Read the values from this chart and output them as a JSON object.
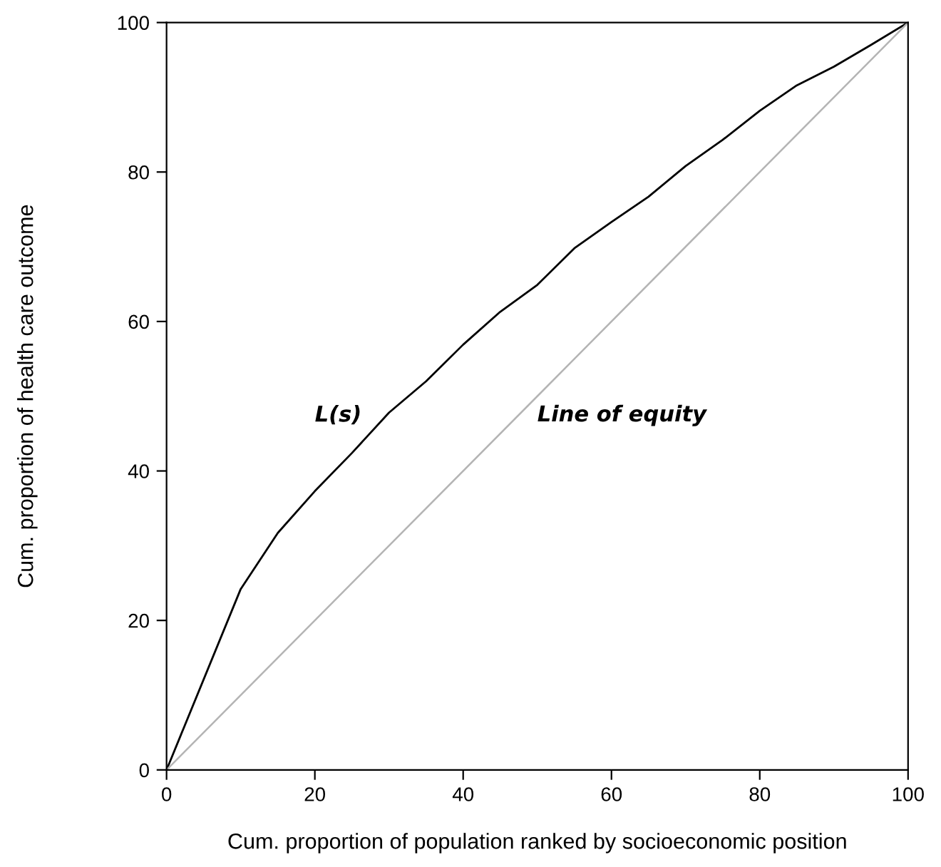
{
  "chart_data": {
    "type": "line",
    "xlabel": "Cum. proportion of population ranked by socioeconomic position",
    "ylabel": "Cum. proportion of health care outcome",
    "xlim": [
      0,
      100
    ],
    "ylim": [
      0,
      100
    ],
    "xticks": [
      0,
      20,
      40,
      60,
      80,
      100
    ],
    "yticks": [
      0,
      20,
      40,
      60,
      80,
      100
    ],
    "grid": false,
    "legend": false,
    "marker": "none",
    "series": [
      {
        "name": "L(s)",
        "color": "#000000",
        "x": [
          0,
          10,
          15,
          20,
          25,
          30,
          35,
          40,
          45,
          50,
          55,
          60,
          65,
          70,
          75,
          80,
          85,
          90,
          95,
          100
        ],
        "values": [
          0,
          24.2,
          31.7,
          37.3,
          42.4,
          47.8,
          52,
          56.9,
          61.3,
          64.9,
          69.8,
          73.3,
          76.7,
          80.8,
          84.3,
          88.2,
          91.6,
          94.1,
          97,
          100
        ]
      },
      {
        "name": "Line of equity",
        "color": "#b4b4b4",
        "x": [
          0,
          100
        ],
        "values": [
          0,
          100
        ]
      }
    ]
  }
}
